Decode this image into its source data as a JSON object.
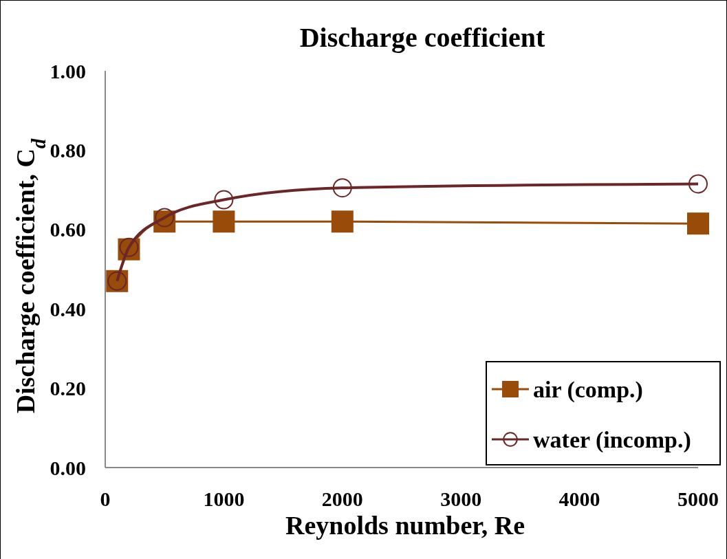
{
  "chart_data": {
    "type": "line",
    "title": "Discharge coefficient",
    "xlabel": "Reynolds number, Re",
    "ylabel": "Discharge coefficient, C$_{d}$",
    "xlim": [
      0,
      5000
    ],
    "xticks": [
      0,
      1000,
      2000,
      3000,
      4000,
      5000
    ],
    "ylim": [
      0,
      1
    ],
    "yticks": [
      {
        "value": 0,
        "label": "0.00"
      },
      {
        "value": 0.2,
        "label": "0.20"
      },
      {
        "value": 0.4,
        "label": "0.40"
      },
      {
        "value": 0.6,
        "label": "0.60"
      },
      {
        "value": 0.8,
        "label": "0.80"
      },
      {
        "value": 1,
        "label": "1.00"
      }
    ],
    "x": [
      100,
      200,
      500,
      1000,
      2000,
      5000
    ],
    "series": [
      {
        "name": "air (comp.)",
        "color": "#994c0a",
        "marker": "square",
        "values": [
          0.47,
          0.55,
          0.62,
          0.62,
          0.62,
          0.615
        ]
      },
      {
        "name": "water (incomp.)",
        "color": "#6b2627",
        "marker": "circle",
        "values": [
          0.47,
          0.555,
          0.63,
          0.675,
          0.705,
          0.715
        ]
      }
    ],
    "grid": false,
    "legend": "bottom right"
  }
}
